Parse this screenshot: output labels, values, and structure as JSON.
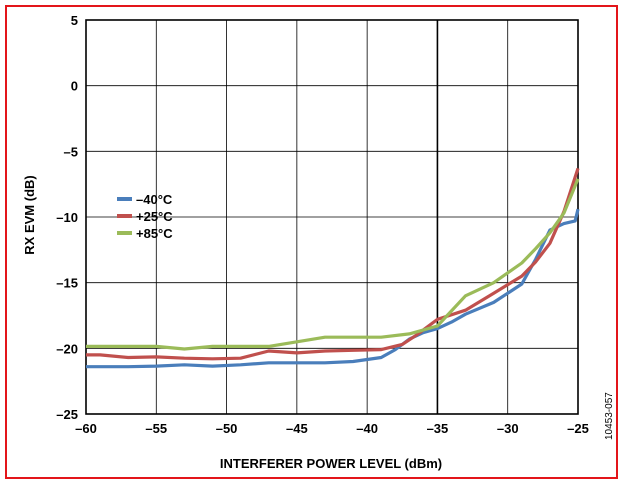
{
  "figure_id": "10453-057",
  "colors": {
    "frame": "#e3151a",
    "grid": "#000000"
  },
  "chart_data": {
    "type": "line",
    "title": "",
    "xlabel": "INTERFERER POWER LEVEL (dBm)",
    "ylabel": "RX EVM (dB)",
    "xlim": [
      -60,
      -25
    ],
    "ylim": [
      -25,
      5
    ],
    "x_ticks": [
      -60,
      -55,
      -50,
      -45,
      -40,
      -35,
      -30,
      -25
    ],
    "x_tick_labels": [
      "–60",
      "–55",
      "–50",
      "–45",
      "–40",
      "–35",
      "–30",
      "–25"
    ],
    "y_ticks": [
      5,
      0,
      -5,
      -10,
      -15,
      -20,
      -25
    ],
    "y_tick_labels": [
      "5",
      "0",
      "–5",
      "–10",
      "–15",
      "–20",
      "–25"
    ],
    "grid": true,
    "highlight_x": -35,
    "legend_position": "left-middle",
    "series": [
      {
        "name": "–40°C",
        "color": "#4a7ebb",
        "x": [
          -60,
          -59,
          -57,
          -55,
          -53,
          -51,
          -49,
          -47,
          -45,
          -43,
          -41,
          -39,
          -38,
          -37,
          -36,
          -35,
          -34,
          -33,
          -31,
          -29,
          -28,
          -27,
          -26,
          -25.2,
          -25
        ],
        "y": [
          -21.4,
          -21.4,
          -21.4,
          -21.35,
          -21.25,
          -21.35,
          -21.25,
          -21.1,
          -21.1,
          -21.1,
          -21.0,
          -20.7,
          -20.1,
          -19.3,
          -18.8,
          -18.5,
          -18.0,
          -17.4,
          -16.5,
          -15.1,
          -13.2,
          -11.0,
          -10.5,
          -10.3,
          -9.4
        ]
      },
      {
        "name": "+25°C",
        "color": "#c0504d",
        "x": [
          -60,
          -59,
          -57,
          -55,
          -53,
          -51,
          -49,
          -47,
          -45,
          -43,
          -41,
          -39,
          -37.5,
          -36.5,
          -35,
          -33,
          -31,
          -29,
          -28,
          -27,
          -26,
          -25
        ],
        "y": [
          -20.5,
          -20.5,
          -20.7,
          -20.65,
          -20.75,
          -20.8,
          -20.75,
          -20.2,
          -20.35,
          -20.2,
          -20.15,
          -20.1,
          -19.7,
          -19.0,
          -17.8,
          -17.1,
          -15.8,
          -14.5,
          -13.4,
          -12.0,
          -9.6,
          -6.3
        ]
      },
      {
        "name": "+85°C",
        "color": "#9bbb59",
        "x": [
          -60,
          -59,
          -55,
          -53,
          -51,
          -49,
          -47,
          -45,
          -43,
          -41,
          -39,
          -37,
          -35,
          -33,
          -31,
          -29,
          -28,
          -27,
          -26,
          -25
        ],
        "y": [
          -19.85,
          -19.85,
          -19.85,
          -20.05,
          -19.85,
          -19.85,
          -19.85,
          -19.5,
          -19.15,
          -19.15,
          -19.15,
          -18.9,
          -18.3,
          -16.0,
          -15.0,
          -13.5,
          -12.4,
          -11.2,
          -9.7,
          -7.1
        ]
      }
    ]
  }
}
